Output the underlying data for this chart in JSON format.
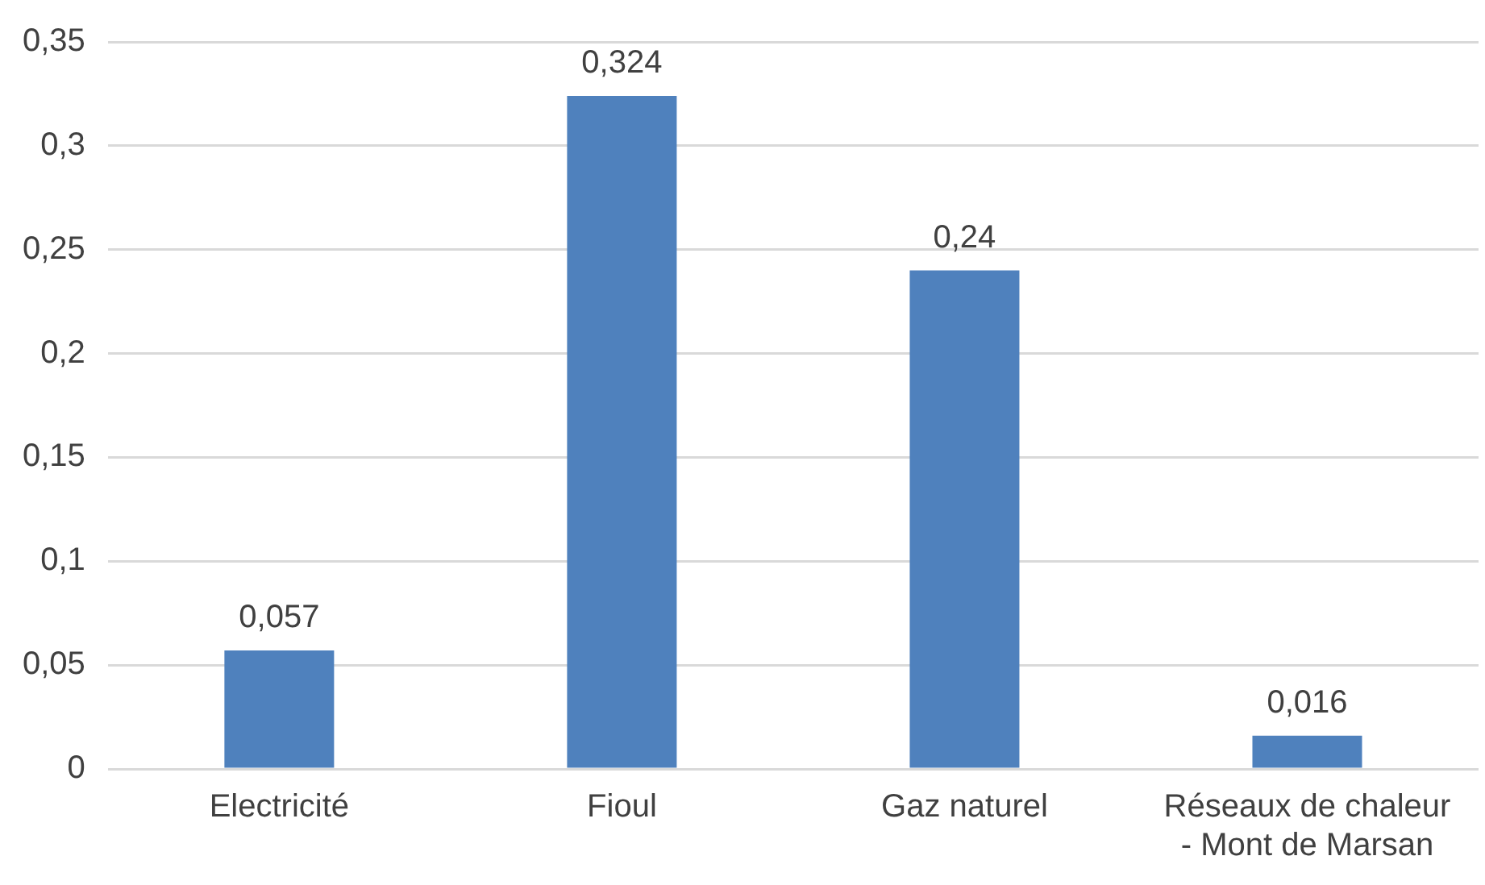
{
  "chart_data": {
    "type": "bar",
    "categories": [
      "Electricité",
      "Fioul",
      "Gaz naturel",
      "Réseaux de chaleur - Mont de Marsan"
    ],
    "values": [
      0.057,
      0.324,
      0.24,
      0.016
    ],
    "value_labels": [
      "0,057",
      "0,324",
      "0,24",
      "0,016"
    ],
    "color": "#4f81bd",
    "ylim": [
      0,
      0.35
    ],
    "yticks": [
      {
        "value": 0,
        "label": "0"
      },
      {
        "value": 0.05,
        "label": "0,05"
      },
      {
        "value": 0.1,
        "label": "0,1"
      },
      {
        "value": 0.15,
        "label": "0,15"
      },
      {
        "value": 0.2,
        "label": "0,2"
      },
      {
        "value": 0.25,
        "label": "0,25"
      },
      {
        "value": 0.3,
        "label": "0,3"
      },
      {
        "value": 0.35,
        "label": "0,35"
      }
    ],
    "grid": "y",
    "legend": false
  }
}
